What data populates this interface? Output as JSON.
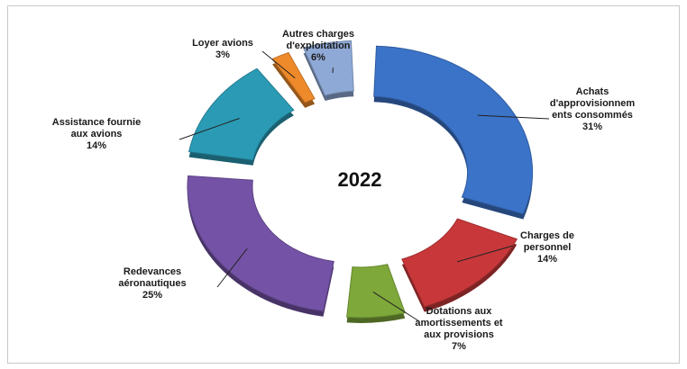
{
  "chart_data": {
    "type": "pie",
    "variant": "exploded-doughnut-3d",
    "center_label": "2022",
    "slices": [
      {
        "label": [
          "Achats",
          "d'approvisionnem",
          "ents consommés"
        ],
        "percent_text": "31%",
        "value": 31,
        "color": "#3b73c8"
      },
      {
        "label": [
          "Charges de",
          "personnel"
        ],
        "percent_text": "14%",
        "value": 14,
        "color": "#c8383a"
      },
      {
        "label": [
          "Dotations aux",
          "amortissements et",
          "aux provisions"
        ],
        "percent_text": "7%",
        "value": 7,
        "color": "#7ea83a"
      },
      {
        "label": [
          "Redevances",
          "aéronautiques"
        ],
        "percent_text": "25%",
        "value": 25,
        "color": "#7453a6"
      },
      {
        "label": [
          "Assistance fournie",
          "aux avions"
        ],
        "percent_text": "14%",
        "value": 14,
        "color": "#2b9bb5"
      },
      {
        "label": [
          "Loyer avions"
        ],
        "percent_text": "3%",
        "value": 3,
        "color": "#ee8a2a"
      },
      {
        "label": [
          "Autres charges",
          "d'exploitation"
        ],
        "percent_text": "6%",
        "value": 6,
        "color": "#8fa9d6"
      }
    ]
  }
}
